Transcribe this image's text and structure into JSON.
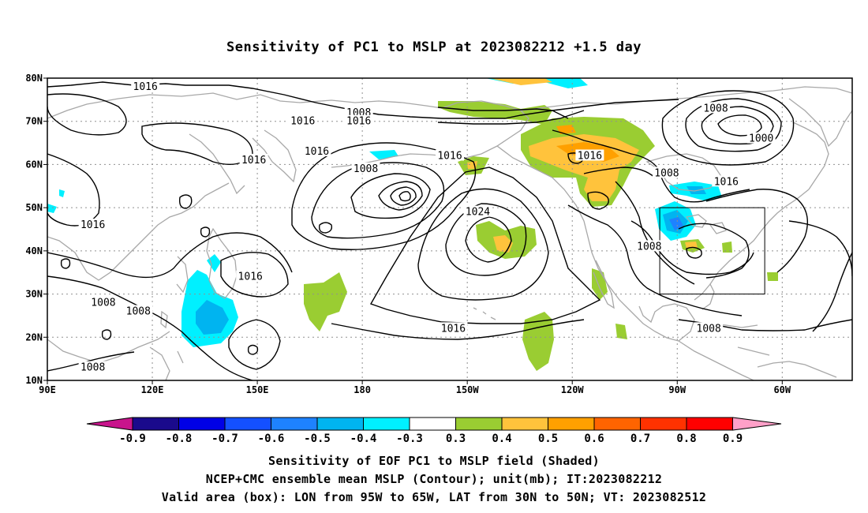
{
  "title": "Sensitivity of PC1 to MSLP at 2023082212 +1.5 day",
  "map": {
    "lon_ticks": [
      "90E",
      "120E",
      "150E",
      "180",
      "150W",
      "120W",
      "90W",
      "60W"
    ],
    "lat_ticks": [
      "80N",
      "70N",
      "60N",
      "50N",
      "40N",
      "30N",
      "20N",
      "10N"
    ],
    "contour_labels": [
      {
        "text": "1016",
        "lon": 118,
        "lat": 78
      },
      {
        "text": "1008",
        "lon": 179,
        "lat": 72
      },
      {
        "text": "1016",
        "lon": 163,
        "lat": 70
      },
      {
        "text": "1016",
        "lon": 179,
        "lat": 70
      },
      {
        "text": "1008",
        "lon": 281,
        "lat": 73
      },
      {
        "text": "1000",
        "lon": 294,
        "lat": 66
      },
      {
        "text": "1016",
        "lon": 167,
        "lat": 63
      },
      {
        "text": "1016",
        "lon": 245,
        "lat": 62
      },
      {
        "text": "1016",
        "lon": 149,
        "lat": 61
      },
      {
        "text": "1016",
        "lon": 205,
        "lat": 62
      },
      {
        "text": "1008",
        "lon": 181,
        "lat": 59
      },
      {
        "text": "1008",
        "lon": 267,
        "lat": 58
      },
      {
        "text": "1016",
        "lon": 284,
        "lat": 56
      },
      {
        "text": "1024",
        "lon": 213,
        "lat": 49
      },
      {
        "text": "1016",
        "lon": 103,
        "lat": 46
      },
      {
        "text": "1008",
        "lon": 262,
        "lat": 41
      },
      {
        "text": "1016",
        "lon": 148,
        "lat": 34
      },
      {
        "text": "1008",
        "lon": 106,
        "lat": 28
      },
      {
        "text": "1008",
        "lon": 116,
        "lat": 26
      },
      {
        "text": "1016",
        "lon": 206,
        "lat": 22
      },
      {
        "text": "1008",
        "lon": 279,
        "lat": 22
      },
      {
        "text": "1008",
        "lon": 103,
        "lat": 13
      }
    ],
    "valid_box": {
      "lon_min": 265,
      "lon_max": 295,
      "lat_min": 30,
      "lat_max": 50
    }
  },
  "colorbar": {
    "labels": [
      "-0.9",
      "-0.8",
      "-0.7",
      "-0.6",
      "-0.5",
      "-0.4",
      "-0.3",
      "0.3",
      "0.4",
      "0.5",
      "0.6",
      "0.7",
      "0.8",
      "0.9"
    ],
    "colors": [
      "#1a0a8c",
      "#0000e6",
      "#1450ff",
      "#1e82ff",
      "#00b4f0",
      "#00f0ff",
      "#ffffff",
      "#9acd32",
      "#ffc33c",
      "#ffa000",
      "#ff6400",
      "#ff3200",
      "#ff0000"
    ],
    "low_extend_color": "#c8148c",
    "high_extend_color": "#ffa0c8"
  },
  "captions": {
    "line1": "Sensitivity of EOF PC1 to MSLP field (Shaded)",
    "line2": "NCEP+CMC ensemble mean MSLP (Contour); unit(mb); IT:2023082212",
    "line3": "Valid area (box): LON from 95W to 65W, LAT from 30N to 50N; VT: 2023082512"
  }
}
